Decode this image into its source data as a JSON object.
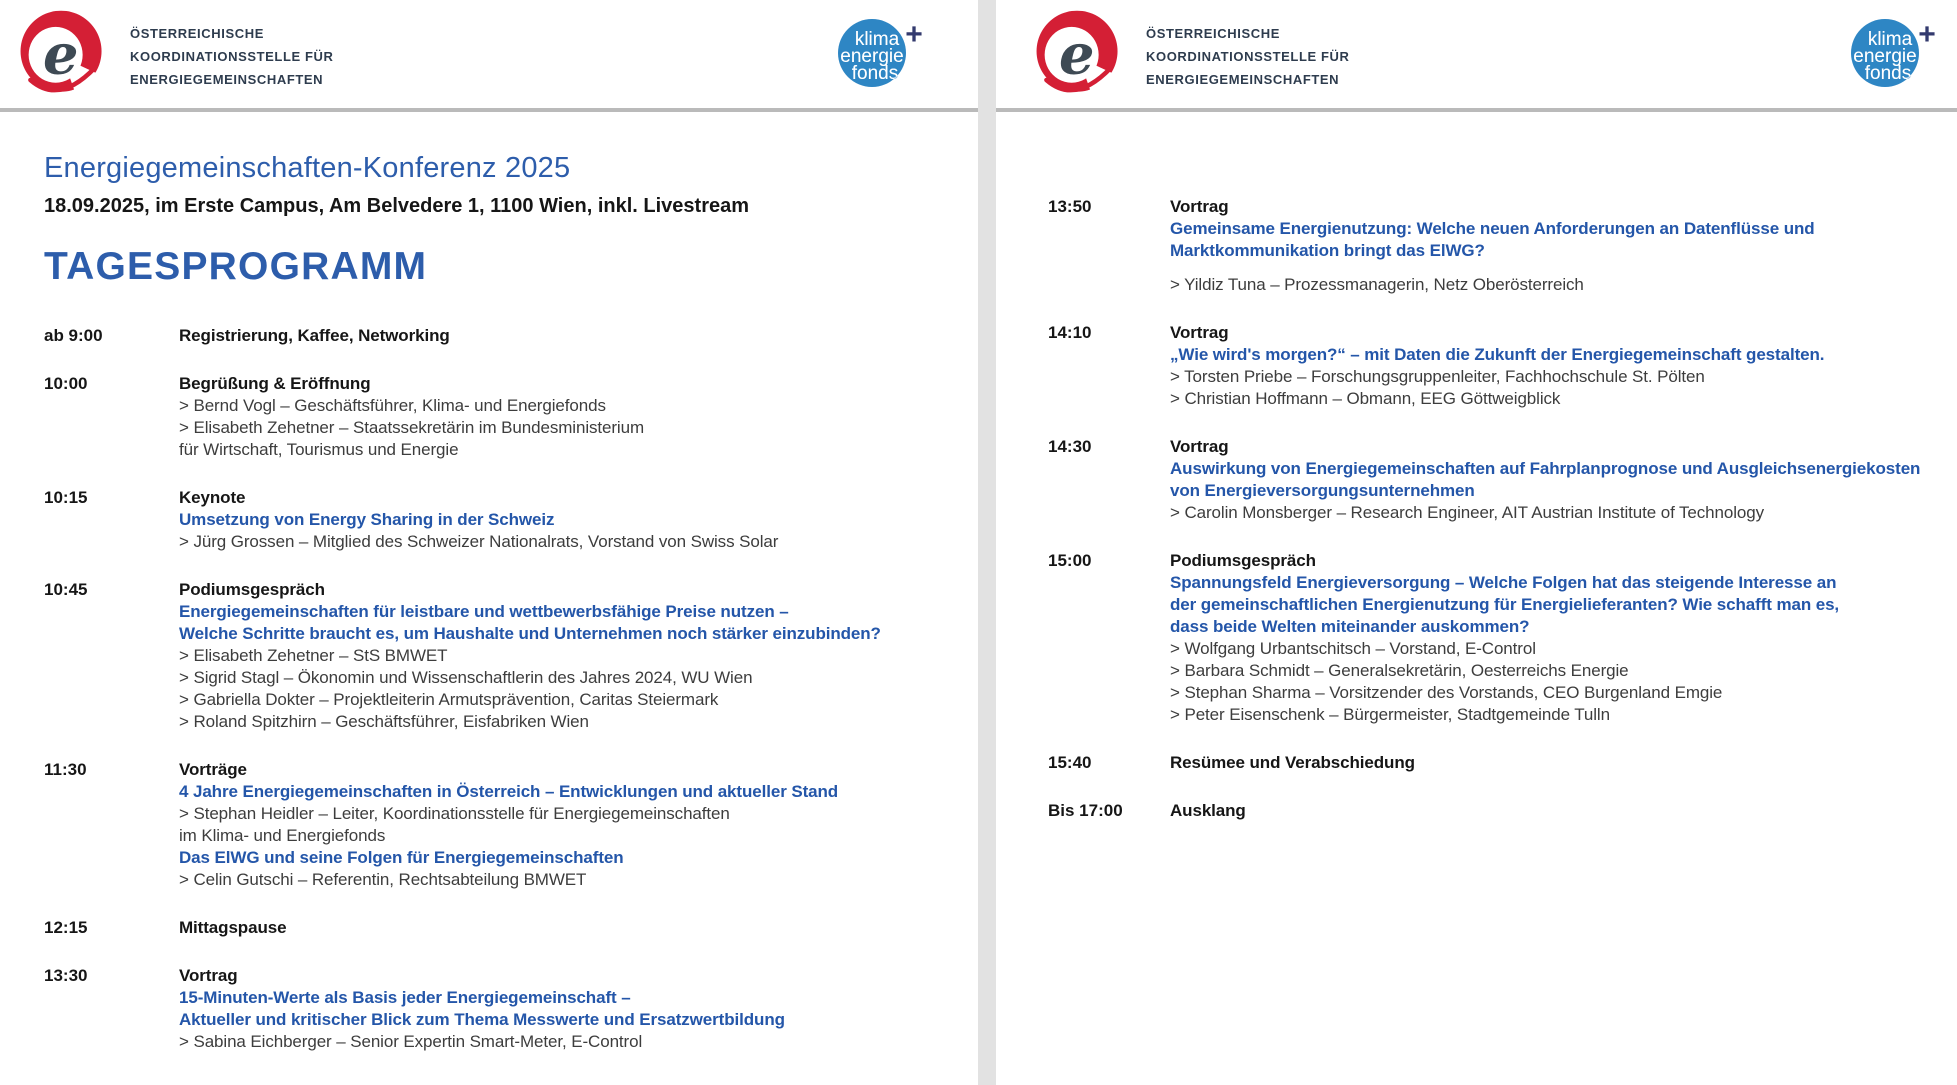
{
  "brand": {
    "org_name_lines": [
      "ÖSTERREICHISCHE",
      "KOORDINATIONSSTELLE FÜR",
      "ENERGIEGEMEINSCHAFTEN"
    ],
    "org_logo_letter": "e",
    "fund_logo": {
      "line1": "klima",
      "line2": "energie",
      "line3": "fonds",
      "plus": "+"
    }
  },
  "colors": {
    "accent_blue": "#2456a9",
    "heading_blue": "#2d5dab",
    "logo_red": "#d41f35",
    "logo_slate": "#3e4a54",
    "fund_blue": "#2e86c4",
    "fund_plus_navy": "#333a6e",
    "rule_gray": "#bababa",
    "divider_gray": "#e2e2e2"
  },
  "left_page": {
    "title": "Energiegemeinschaften-Konferenz 2025",
    "subtitle": "18.09.2025, im Erste Campus, Am Belvedere 1, 1100 Wien, inkl. Livestream",
    "section_heading": "TAGESPROGRAMM",
    "schedule": [
      {
        "time": "ab 9:00",
        "lines": [
          {
            "style": "type",
            "text": "Registrierung, Kaffee, Networking"
          }
        ]
      },
      {
        "time": "10:00",
        "lines": [
          {
            "style": "type",
            "text": "Begrüßung & Eröffnung"
          },
          {
            "style": "speaker",
            "text": "> Bernd Vogl – Geschäftsführer, Klima- und Energiefonds"
          },
          {
            "style": "speaker",
            "text": "> Elisabeth Zehetner – Staatssekretärin im Bundesministerium"
          },
          {
            "style": "plain",
            "text": "für Wirtschaft, Tourismus und Energie"
          }
        ]
      },
      {
        "time": "10:15",
        "lines": [
          {
            "style": "type",
            "text": "Keynote"
          },
          {
            "style": "title",
            "text": "Umsetzung von Energy Sharing in der Schweiz"
          },
          {
            "style": "speaker",
            "text": "> Jürg Grossen – Mitglied des Schweizer Nationalrats, Vorstand von Swiss Solar"
          }
        ]
      },
      {
        "time": "10:45",
        "lines": [
          {
            "style": "type",
            "text": "Podiumsgespräch"
          },
          {
            "style": "title",
            "text": "Energiegemeinschaften für leistbare und wettbewerbsfähige Preise nutzen –"
          },
          {
            "style": "title",
            "text": "Welche Schritte braucht es, um Haushalte und Unternehmen noch stärker einzubinden?"
          },
          {
            "style": "speaker",
            "text": "> Elisabeth Zehetner – StS BMWET"
          },
          {
            "style": "speaker",
            "text": "> Sigrid Stagl – Ökonomin und Wissenschaftlerin des Jahres 2024, WU Wien"
          },
          {
            "style": "speaker",
            "text": "> Gabriella Dokter – Projektleiterin Armutsprävention, Caritas Steiermark"
          },
          {
            "style": "speaker",
            "text": "> Roland Spitzhirn – Geschäftsführer, Eisfabriken Wien"
          }
        ]
      },
      {
        "time": "11:30",
        "lines": [
          {
            "style": "type",
            "text": "Vorträge"
          },
          {
            "style": "title",
            "text": "4 Jahre Energiegemeinschaften in Österreich – Entwicklungen und aktueller Stand"
          },
          {
            "style": "speaker",
            "text": "> Stephan Heidler – Leiter, Koordinationsstelle für Energiegemeinschaften"
          },
          {
            "style": "plain",
            "text": "im Klima- und Energiefonds"
          },
          {
            "style": "title",
            "text": "Das ElWG und seine Folgen für Energiegemeinschaften"
          },
          {
            "style": "speaker",
            "text": "> Celin Gutschi – Referentin, Rechtsabteilung BMWET"
          }
        ]
      },
      {
        "time": "12:15",
        "lines": [
          {
            "style": "type",
            "text": "Mittagspause"
          }
        ]
      },
      {
        "time": "13:30",
        "lines": [
          {
            "style": "type",
            "text": "Vortrag"
          },
          {
            "style": "title",
            "text": "15-Minuten-Werte als Basis jeder Energiegemeinschaft –"
          },
          {
            "style": "title",
            "text": "Aktueller und kritischer Blick zum Thema Messwerte und Ersatzwertbildung"
          },
          {
            "style": "speaker",
            "text": "> Sabina Eichberger – Senior Expertin Smart-Meter, E-Control"
          }
        ]
      }
    ]
  },
  "right_page": {
    "schedule": [
      {
        "time": "13:50",
        "lines": [
          {
            "style": "type",
            "text": "Vortrag"
          },
          {
            "style": "title",
            "text": "Gemeinsame Energienutzung: Welche neuen Anforderungen an Datenflüsse und"
          },
          {
            "style": "title",
            "text": "Marktkommunikation bringt das ElWG?"
          },
          {
            "style": "speaker",
            "space_before": true,
            "text": "> Yildiz Tuna – Prozessmanagerin, Netz Oberösterreich"
          }
        ]
      },
      {
        "time": "14:10",
        "lines": [
          {
            "style": "type",
            "text": "Vortrag"
          },
          {
            "style": "title",
            "text": "„Wie wird's morgen?“ – mit Daten die Zukunft der Energiegemeinschaft gestalten."
          },
          {
            "style": "speaker",
            "text": "> Torsten Priebe – Forschungsgruppenleiter, Fachhochschule St. Pölten"
          },
          {
            "style": "speaker",
            "text": "> Christian Hoffmann – Obmann, EEG Göttweigblick"
          }
        ]
      },
      {
        "time": "14:30",
        "lines": [
          {
            "style": "type",
            "text": "Vortrag"
          },
          {
            "style": "title",
            "text": "Auswirkung von Energiegemeinschaften auf Fahrplanprognose und Ausgleichsenergiekosten"
          },
          {
            "style": "title",
            "text": "von Energieversorgungsunternehmen"
          },
          {
            "style": "speaker",
            "text": "> Carolin Monsberger – Research Engineer, AIT Austrian Institute of Technology"
          }
        ]
      },
      {
        "time": "15:00",
        "lines": [
          {
            "style": "type",
            "text": "Podiumsgespräch"
          },
          {
            "style": "title",
            "text": "Spannungsfeld Energieversorgung – Welche Folgen hat das steigende Interesse an"
          },
          {
            "style": "title",
            "text": "der gemeinschaftlichen Energienutzung für Energielieferanten? Wie schafft man es,"
          },
          {
            "style": "title",
            "text": "dass beide Welten miteinander auskommen?"
          },
          {
            "style": "speaker",
            "text": "> Wolfgang Urbantschitsch – Vorstand, E-Control"
          },
          {
            "style": "speaker",
            "text": "> Barbara Schmidt – Generalsekretärin, Oesterreichs Energie"
          },
          {
            "style": "speaker",
            "text": "> Stephan Sharma – Vorsitzender des Vorstands, CEO Burgenland Emgie"
          },
          {
            "style": "speaker",
            "text": "> Peter Eisenschenk – Bürgermeister, Stadtgemeinde Tulln"
          }
        ]
      },
      {
        "time": "15:40",
        "lines": [
          {
            "style": "type",
            "text": "Resümee und Verabschiedung"
          }
        ]
      },
      {
        "time": "Bis 17:00",
        "lines": [
          {
            "style": "type",
            "text": "Ausklang"
          }
        ]
      }
    ]
  }
}
